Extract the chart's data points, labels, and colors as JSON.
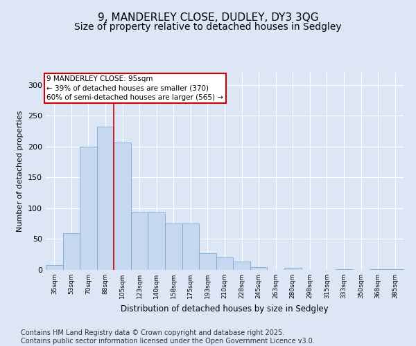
{
  "title": "9, MANDERLEY CLOSE, DUDLEY, DY3 3QG",
  "subtitle": "Size of property relative to detached houses in Sedgley",
  "xlabel": "Distribution of detached houses by size in Sedgley",
  "ylabel": "Number of detached properties",
  "categories": [
    "35sqm",
    "53sqm",
    "70sqm",
    "88sqm",
    "105sqm",
    "123sqm",
    "140sqm",
    "158sqm",
    "175sqm",
    "193sqm",
    "210sqm",
    "228sqm",
    "245sqm",
    "263sqm",
    "280sqm",
    "298sqm",
    "315sqm",
    "333sqm",
    "350sqm",
    "368sqm",
    "385sqm"
  ],
  "values": [
    8,
    60,
    200,
    232,
    207,
    93,
    93,
    75,
    75,
    27,
    20,
    14,
    4,
    0,
    3,
    0,
    0,
    1,
    0,
    1,
    1
  ],
  "bar_color": "#c5d8f0",
  "bar_edge_color": "#7aa8d4",
  "vline_x_index": 3.5,
  "vline_color": "#cc0000",
  "annotation_text": "9 MANDERLEY CLOSE: 95sqm\n← 39% of detached houses are smaller (370)\n60% of semi-detached houses are larger (565) →",
  "annotation_box_color": "#ffffff",
  "annotation_box_edge_color": "#cc0000",
  "ylim": [
    0,
    320
  ],
  "yticks": [
    0,
    50,
    100,
    150,
    200,
    250,
    300
  ],
  "footnote": "Contains HM Land Registry data © Crown copyright and database right 2025.\nContains public sector information licensed under the Open Government Licence v3.0.",
  "background_color": "#dce6f5",
  "plot_bg_color": "#dce6f5",
  "title_fontsize": 11,
  "subtitle_fontsize": 10,
  "footnote_fontsize": 7
}
